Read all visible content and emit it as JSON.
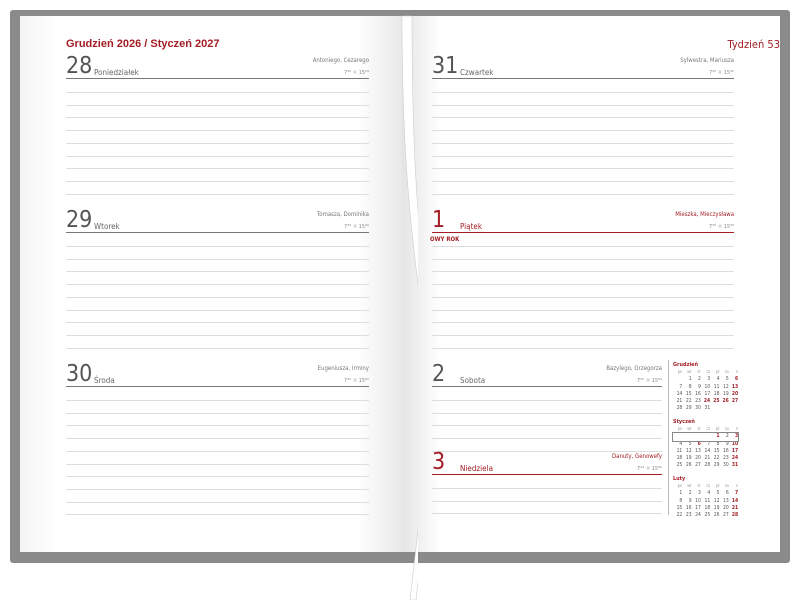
{
  "left": {
    "header": "Grudzień 2026 / Styczeń 2027",
    "days": [
      {
        "num": "28",
        "name": "Poniedziałek",
        "saints": "Antoniego, Cezarego",
        "sunrise": "7⁴⁵",
        "sunset": "15²⁹"
      },
      {
        "num": "29",
        "name": "Wtorek",
        "saints": "Tomasza, Dominika",
        "sunrise": "7⁴⁵",
        "sunset": "15³⁰"
      },
      {
        "num": "30",
        "name": "Środa",
        "saints": "Eugeniusza, Irminy",
        "sunrise": "7⁴⁵",
        "sunset": "15³¹"
      }
    ]
  },
  "right": {
    "week": "Tydzień 53",
    "days": [
      {
        "num": "31",
        "name": "Czwartek",
        "saints": "Sylwestra, Mariusza",
        "sunrise": "7⁴⁵",
        "sunset": "15³²"
      },
      {
        "num": "1",
        "name": "Piątek",
        "saints": "Mieszka, Mieczysława",
        "sunrise": "7⁴⁵",
        "sunset": "15³³",
        "holiday": "OWY ROK"
      },
      {
        "num": "2",
        "name": "Sobota",
        "saints": "Bazylego, Grzegorza",
        "sunrise": "7⁴⁵",
        "sunset": "15³⁴"
      },
      {
        "num": "3",
        "name": "Niedziela",
        "saints": "Danuty, Genowefy",
        "sunrise": "7⁴⁴",
        "sunset": "15³⁶"
      }
    ]
  },
  "calendars": {
    "weekdays": [
      "pn",
      "wt",
      "śr",
      "cz",
      "pt",
      "so",
      "n"
    ],
    "months": [
      {
        "title": "Grudzień",
        "weeks": [
          [
            "",
            "1",
            "2",
            "3",
            "4",
            "5",
            "6"
          ],
          [
            "7",
            "8",
            "9",
            "10",
            "11",
            "12",
            "13"
          ],
          [
            "14",
            "15",
            "16",
            "17",
            "18",
            "19",
            "20"
          ],
          [
            "21",
            "22",
            "23",
            "24",
            "25",
            "26",
            "27"
          ],
          [
            "28",
            "29",
            "30",
            "31",
            "",
            "",
            ""
          ]
        ],
        "red": [
          "6",
          "13",
          "20",
          "24",
          "25",
          "26",
          "27"
        ]
      },
      {
        "title": "Styczeń",
        "weeks": [
          [
            "",
            "",
            "",
            "",
            "1",
            "2",
            "3"
          ],
          [
            "4",
            "5",
            "6",
            "7",
            "8",
            "9",
            "10"
          ],
          [
            "11",
            "12",
            "13",
            "14",
            "15",
            "16",
            "17"
          ],
          [
            "18",
            "19",
            "20",
            "21",
            "22",
            "23",
            "24"
          ],
          [
            "25",
            "26",
            "27",
            "28",
            "29",
            "30",
            "31"
          ]
        ],
        "red": [
          "1",
          "3",
          "6",
          "10",
          "17",
          "24",
          "31"
        ],
        "current_week": 0
      },
      {
        "title": "Luty",
        "weeks": [
          [
            "1",
            "2",
            "3",
            "4",
            "5",
            "6",
            "7"
          ],
          [
            "8",
            "9",
            "10",
            "11",
            "12",
            "13",
            "14"
          ],
          [
            "15",
            "16",
            "17",
            "18",
            "19",
            "20",
            "21"
          ],
          [
            "22",
            "23",
            "24",
            "25",
            "26",
            "27",
            "28"
          ]
        ],
        "red": [
          "7",
          "14",
          "21",
          "28"
        ]
      }
    ]
  },
  "colors": {
    "accent": "#a31d24",
    "cover": "#8a8a8a"
  }
}
